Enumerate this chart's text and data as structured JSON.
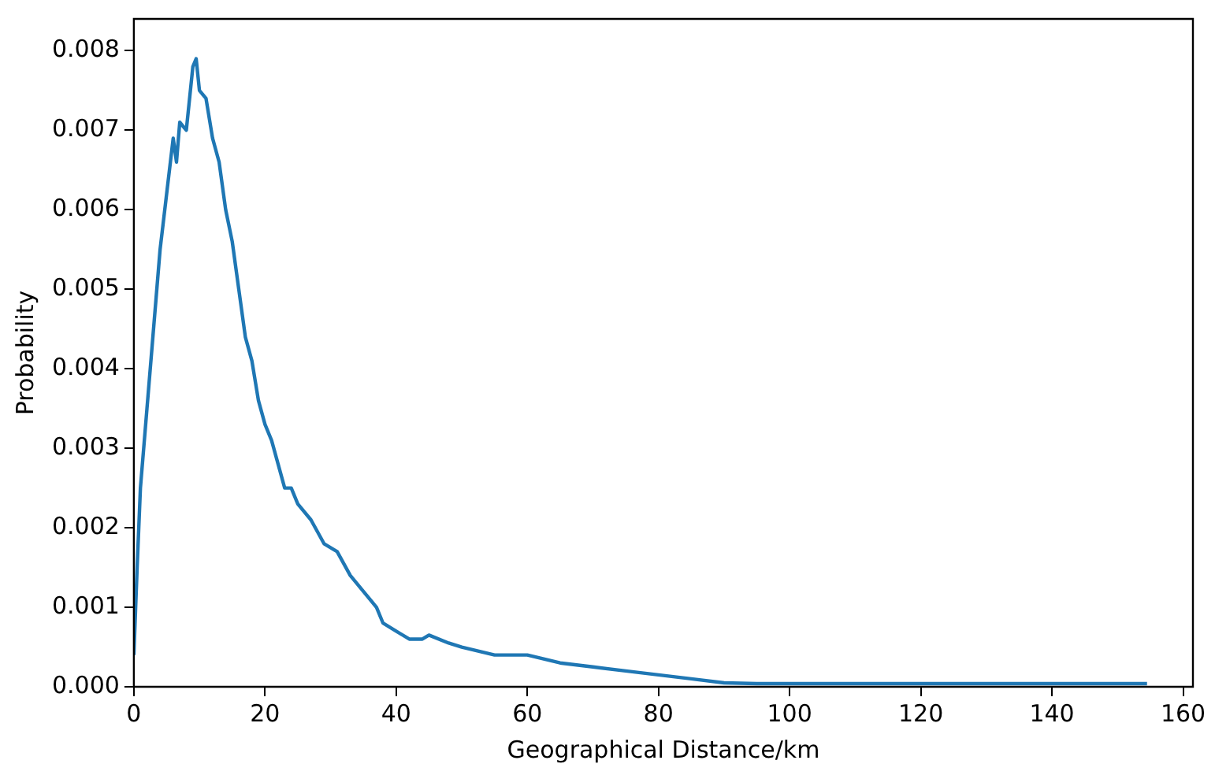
{
  "chart_data": {
    "type": "line",
    "xlabel": "Geographical Distance/km",
    "ylabel": "Probability",
    "x": [
      0,
      0.5,
      1,
      2,
      3,
      4,
      5,
      6,
      6.5,
      7,
      8,
      9,
      9.5,
      10,
      11,
      12,
      13,
      14,
      15,
      16,
      17,
      18,
      19,
      20,
      21,
      22,
      23,
      24,
      25,
      27,
      29,
      31,
      33,
      35,
      37,
      38,
      40,
      42,
      44,
      45,
      48,
      50,
      55,
      60,
      65,
      70,
      75,
      80,
      85,
      90,
      95,
      100,
      110,
      120,
      130,
      140,
      154.5
    ],
    "series": [
      {
        "color": "#1f77b4",
        "values": [
          0.0004,
          0.0015,
          0.0025,
          0.0035,
          0.0045,
          0.0055,
          0.0062,
          0.0069,
          0.0066,
          0.0071,
          0.007,
          0.0078,
          0.0079,
          0.0075,
          0.0074,
          0.0069,
          0.0066,
          0.006,
          0.0056,
          0.005,
          0.0044,
          0.0041,
          0.0036,
          0.0033,
          0.0031,
          0.0028,
          0.0025,
          0.0025,
          0.0023,
          0.0021,
          0.0018,
          0.0017,
          0.0014,
          0.0012,
          0.001,
          0.0008,
          0.0007,
          0.0006,
          0.0006,
          0.00065,
          0.00055,
          0.0005,
          0.0004,
          0.0004,
          0.0003,
          0.00025,
          0.0002,
          0.00015,
          0.0001,
          5e-05,
          4e-05,
          4e-05,
          4e-05,
          4e-05,
          4e-05,
          4e-05,
          4e-05
        ]
      }
    ],
    "xlim": [
      0,
      161.5
    ],
    "xticks": [
      0,
      20,
      40,
      60,
      80,
      100,
      120,
      140,
      160
    ],
    "ylim": [
      0,
      0.0084
    ],
    "yticks": [
      {
        "value": 0,
        "label": "0.000"
      },
      {
        "value": 0.001,
        "label": "0.001"
      },
      {
        "value": 0.002,
        "label": "0.002"
      },
      {
        "value": 0.003,
        "label": "0.003"
      },
      {
        "value": 0.004,
        "label": "0.004"
      },
      {
        "value": 0.005,
        "label": "0.005"
      },
      {
        "value": 0.006,
        "label": "0.006"
      },
      {
        "value": 0.007,
        "label": "0.007"
      },
      {
        "value": 0.008,
        "label": "0.008"
      }
    ],
    "grid": false,
    "legend": false,
    "marker": "none",
    "line_style": "solid"
  }
}
